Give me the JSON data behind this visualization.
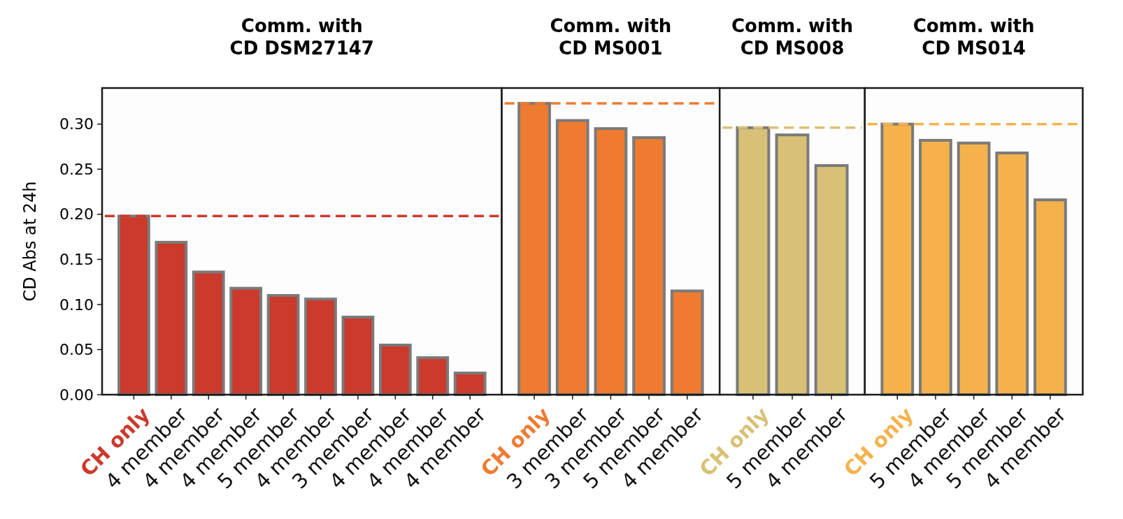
{
  "chart_data": [
    {
      "type": "bar",
      "title": "Comm. with\nCD DSM27147",
      "ylabel": "CD Abs at 24h",
      "categories": [
        "CH only",
        "4 member",
        "4 member",
        "4 member",
        "5 member",
        "4 member",
        "3 member",
        "4 member",
        "4 member",
        "4 member"
      ],
      "series": [
        {
          "color": "#cc3a2c",
          "values": [
            0.198,
            0.169,
            0.136,
            0.118,
            0.11,
            0.106,
            0.086,
            0.055,
            0.041,
            0.024
          ]
        }
      ],
      "ylim": [
        0,
        0.34
      ],
      "yticks": [
        {
          "value": 0,
          "label": "0.00"
        },
        0.05,
        {
          "value": 0.1,
          "label": "0.10"
        },
        0.15,
        {
          "value": 0.2,
          "label": "0.20"
        },
        0.25,
        {
          "value": 0.3,
          "label": "0.30"
        }
      ],
      "ref_lines": [
        {
          "axis": "y",
          "value": 0.198,
          "color": "#cc3a2c",
          "line_style": "dashed"
        }
      ]
    },
    {
      "type": "bar",
      "title": "Comm. with\nCD MS001",
      "categories": [
        "CH only",
        "3 member",
        "3 member",
        "5 member",
        "4 member"
      ],
      "series": [
        {
          "color": "#ee7b30",
          "values": [
            0.323,
            0.304,
            0.295,
            0.285,
            0.115
          ]
        }
      ],
      "ylim": [
        0,
        0.34
      ],
      "tick_labels": "x",
      "ref_lines": [
        {
          "axis": "y",
          "value": 0.323,
          "color": "#ee7b30",
          "line_style": "dashed"
        }
      ]
    },
    {
      "type": "bar",
      "title": "Comm. with\nCD MS008",
      "categories": [
        "CH only",
        "5 member",
        "4 member"
      ],
      "series": [
        {
          "color": "#d8c176",
          "values": [
            0.296,
            0.288,
            0.254
          ]
        }
      ],
      "ylim": [
        0,
        0.34
      ],
      "tick_labels": "x",
      "ref_lines": [
        {
          "axis": "y",
          "value": 0.296,
          "color": "#d8c176",
          "line_style": "dashed"
        }
      ]
    },
    {
      "type": "bar",
      "title": "Comm. with\nCD MS014",
      "categories": [
        "CH only",
        "5 member",
        "4 member",
        "5 member",
        "4 member"
      ],
      "series": [
        {
          "color": "#f5b24c",
          "values": [
            0.3,
            0.282,
            0.279,
            0.268,
            0.216
          ]
        }
      ],
      "ylim": [
        0,
        0.34
      ],
      "tick_labels": "x",
      "ref_lines": [
        {
          "axis": "y",
          "value": 0.3,
          "color": "#f5b24c",
          "line_style": "dashed"
        }
      ]
    }
  ]
}
